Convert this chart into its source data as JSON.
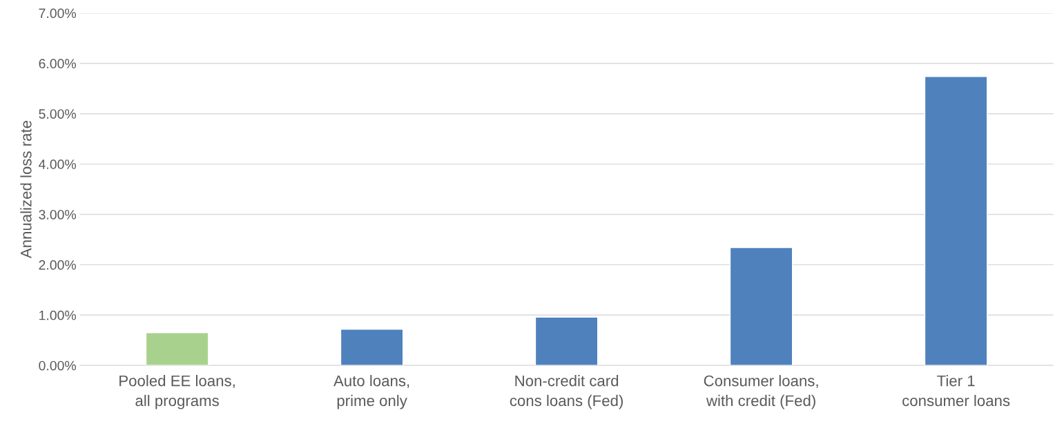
{
  "chart_data": {
    "type": "bar",
    "ylabel": "Annualized loss rate",
    "categories": [
      "Pooled EE loans, all programs",
      "Auto loans, prime only",
      "Non-credit card cons loans (Fed)",
      "Consumer loans, with credit (Fed)",
      "Tier 1 consumer loans"
    ],
    "values": [
      0.65,
      0.72,
      0.96,
      2.34,
      5.74
    ],
    "colors": [
      "#a9d18e",
      "#4f81bd",
      "#4f81bd",
      "#4f81bd",
      "#4f81bd"
    ],
    "ylim": [
      0,
      7
    ],
    "yticks": [
      {
        "value": 0,
        "label": "0.00%"
      },
      {
        "value": 1,
        "label": "1.00%"
      },
      {
        "value": 2,
        "label": "2.00%"
      },
      {
        "value": 3,
        "label": "3.00%"
      },
      {
        "value": 4,
        "label": "4.00%"
      },
      {
        "value": 5,
        "label": "5.00%"
      },
      {
        "value": 6,
        "label": "6.00%"
      },
      {
        "value": 7,
        "label": "7.00%"
      }
    ],
    "grid": "y"
  }
}
